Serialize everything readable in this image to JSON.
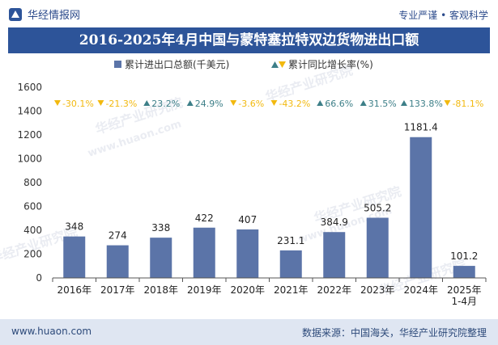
{
  "brand": {
    "name": "华经情报网",
    "slogan": "专业严谨 • 客观科学"
  },
  "footer": {
    "website": "www.huaon.com",
    "source": "数据来源：中国海关，华经产业研究院整理"
  },
  "watermark": {
    "cn": "华经产业研究院",
    "url": "www.huaon.com"
  },
  "colors": {
    "bar": "#5b74a8",
    "up": "#3d7f88",
    "down": "#f2b90f",
    "title_bg": "#2d5499"
  },
  "chart_data": {
    "type": "bar",
    "title": "2016-2025年4月中国与蒙特塞拉特双边货物进出口额",
    "categories": [
      "2016年",
      "2017年",
      "2018年",
      "2019年",
      "2020年",
      "2021年",
      "2022年",
      "2023年",
      "2024年",
      "2025年\n1-4月"
    ],
    "series": [
      {
        "name": "累计进出口总额(千美元)",
        "values": [
          348,
          274,
          338,
          422,
          407,
          231.1,
          384.9,
          505.2,
          1181.4,
          101.2
        ],
        "labels": [
          "348",
          "274",
          "338",
          "422",
          "407",
          "231.1",
          "384.9",
          "505.2",
          "1181.4",
          "101.2"
        ]
      },
      {
        "name": "累计同比增长率(%)",
        "values": [
          -30.1,
          -21.3,
          23.2,
          24.9,
          -3.6,
          -43.2,
          66.6,
          31.5,
          133.8,
          -81.1
        ],
        "labels": [
          "-30.1%",
          "-21.3%",
          "23.2%",
          "24.9%",
          "-3.6%",
          "-43.2%",
          "66.6%",
          "31.5%",
          "133.8%",
          "-81.1%"
        ]
      }
    ],
    "ylim": [
      0,
      1600
    ],
    "yticks": [
      0,
      200,
      400,
      600,
      800,
      1000,
      1200,
      1400,
      1600
    ],
    "legend": "top-center",
    "grid": false
  }
}
